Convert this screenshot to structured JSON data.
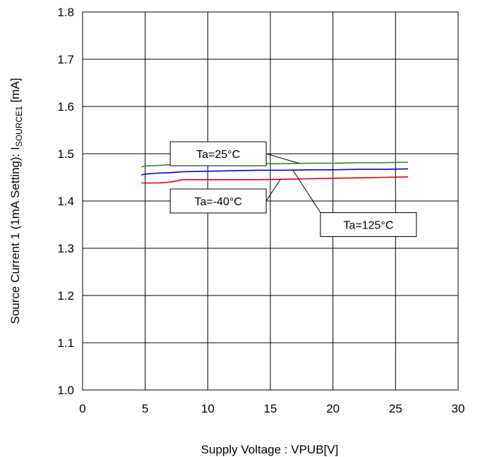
{
  "chart_data": {
    "type": "line",
    "xlabel": "Supply Voltage : VPUB[V]",
    "ylabel_main": "Source Current 1 (1mA Setting): I",
    "ylabel_sub": "SOURCE1",
    "ylabel_unit": " [mA]",
    "xlim": [
      0,
      30
    ],
    "ylim": [
      1.0,
      1.8
    ],
    "x_ticks": [
      "0",
      "5",
      "10",
      "15",
      "20",
      "25",
      "30"
    ],
    "y_ticks": [
      "1.0",
      "1.1",
      "1.2",
      "1.3",
      "1.4",
      "1.5",
      "1.6",
      "1.7",
      "1.8"
    ],
    "grid": true,
    "series": [
      {
        "name": "Ta=25°C",
        "color": "#2e8b2e",
        "x": [
          4.7,
          5,
          6,
          7,
          8,
          10,
          12,
          14,
          16,
          18,
          20,
          22,
          24,
          26
        ],
        "y": [
          1.472,
          1.474,
          1.475,
          1.477,
          1.477,
          1.478,
          1.478,
          1.479,
          1.479,
          1.48,
          1.48,
          1.481,
          1.481,
          1.482
        ]
      },
      {
        "name": "Ta=125°C",
        "color": "#0000dd",
        "x": [
          4.7,
          5,
          6,
          7,
          8,
          10,
          12,
          14,
          16,
          18,
          20,
          22,
          24,
          26
        ],
        "y": [
          1.455,
          1.457,
          1.459,
          1.46,
          1.462,
          1.463,
          1.464,
          1.465,
          1.465,
          1.466,
          1.466,
          1.467,
          1.467,
          1.468
        ]
      },
      {
        "name": "Ta=-40°C",
        "color": "#dd0000",
        "x": [
          4.7,
          5,
          6,
          7,
          8,
          10,
          12,
          14,
          16,
          18,
          20,
          22,
          24,
          26
        ],
        "y": [
          1.438,
          1.438,
          1.438,
          1.44,
          1.445,
          1.445,
          1.445,
          1.445,
          1.446,
          1.447,
          1.448,
          1.449,
          1.45,
          1.451
        ]
      }
    ],
    "annotations": [
      {
        "text": "Ta=25°C",
        "series": 0,
        "box_x": 7,
        "box_y": 1.5
      },
      {
        "text": "Ta=-40°C",
        "series": 2,
        "box_x": 7,
        "box_y": 1.4
      },
      {
        "text": "Ta=125°C",
        "series": 1,
        "box_x": 19,
        "box_y": 1.35
      }
    ]
  }
}
